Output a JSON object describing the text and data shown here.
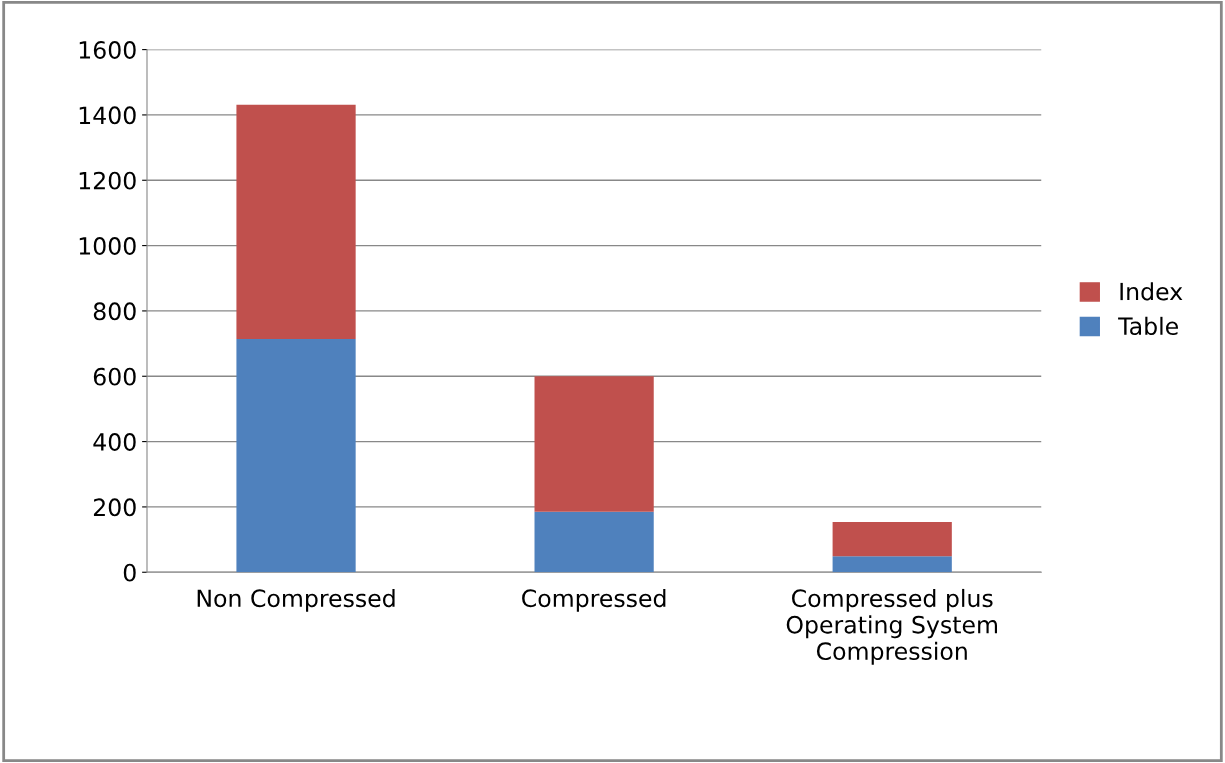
{
  "chart_data": {
    "type": "bar",
    "stacked": true,
    "categories": [
      "Non Compressed",
      "Compressed",
      "Compressed plus\nOperating System\nCompression"
    ],
    "series": [
      {
        "name": "Table",
        "color": "#4f81bd",
        "values": [
          714,
          185,
          49
        ]
      },
      {
        "name": "Index",
        "color": "#c0504d",
        "values": [
          717,
          415,
          105
        ]
      }
    ],
    "ylim": [
      0,
      1600
    ],
    "yticks": [
      0,
      200,
      400,
      600,
      800,
      1000,
      1200,
      1400,
      1600
    ],
    "grid": "y",
    "legend": "right"
  }
}
